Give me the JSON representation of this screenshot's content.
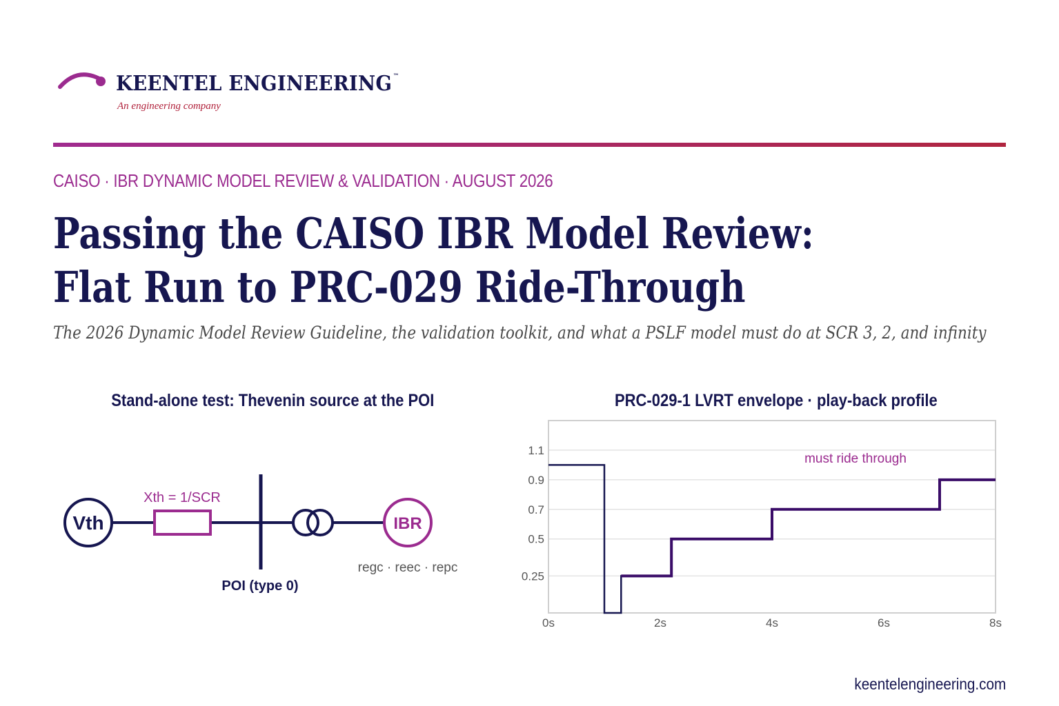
{
  "brand": {
    "name": "KEENTEL ENGINEERING",
    "trademark": "™",
    "tagline": "An engineering company",
    "logo_icon": "arc-arrow-logo",
    "accent_color": "#9b2b8f",
    "rule_end_color": "#b0253f",
    "navy_color": "#161650"
  },
  "kicker": "CAISO · IBR DYNAMIC MODEL REVIEW & VALIDATION · AUGUST 2026",
  "headline": {
    "line1": "Passing the CAISO IBR Model Review:",
    "line2": "Flat Run to PRC-029 Ride-Through"
  },
  "subhead": "The 2026 Dynamic Model Review Guideline, the validation toolkit, and what a PSLF model must do at SCR 3, 2, and infinity",
  "diagram": {
    "title": "Stand-alone test: Thevenin source at the POI",
    "source_label": "Vth",
    "impedance_label": "Xth = 1/SCR",
    "bus_label": "POI (type 0)",
    "ibr_label": "IBR",
    "ibr_models": "regc · reec · repc"
  },
  "chart_data": {
    "type": "line",
    "title": "PRC-029-1 LVRT envelope · play-back profile",
    "xlabel": "",
    "ylabel": "",
    "xlim": [
      0,
      8
    ],
    "ylim": [
      0,
      1.3
    ],
    "x_ticks": [
      0,
      2,
      4,
      6,
      8
    ],
    "x_tick_labels": [
      "0s",
      "2s",
      "4s",
      "6s",
      "8s"
    ],
    "y_ticks": [
      0.25,
      0.5,
      0.7,
      0.9,
      1.1
    ],
    "y_tick_labels": [
      "0.25",
      "0.5",
      "0.7",
      "0.9",
      "1.1"
    ],
    "grid": true,
    "annotation": "must ride through",
    "series": [
      {
        "color": "#161650",
        "x": [
          0,
          1,
          1,
          1.3,
          1.3,
          2.2,
          2.2,
          4,
          4,
          7,
          7,
          8
        ],
        "y": [
          1.0,
          1.0,
          0,
          0,
          0.25,
          0.25,
          0.5,
          0.5,
          0.7,
          0.7,
          0.9,
          0.9
        ]
      },
      {
        "color": "#3a0c68",
        "x": [
          1.3,
          2.2,
          2.2,
          4,
          4,
          7,
          7,
          8
        ],
        "y": [
          0.25,
          0.25,
          0.5,
          0.5,
          0.7,
          0.7,
          0.9,
          0.9
        ]
      }
    ]
  },
  "footer": {
    "url": "keentelengineering.com"
  }
}
